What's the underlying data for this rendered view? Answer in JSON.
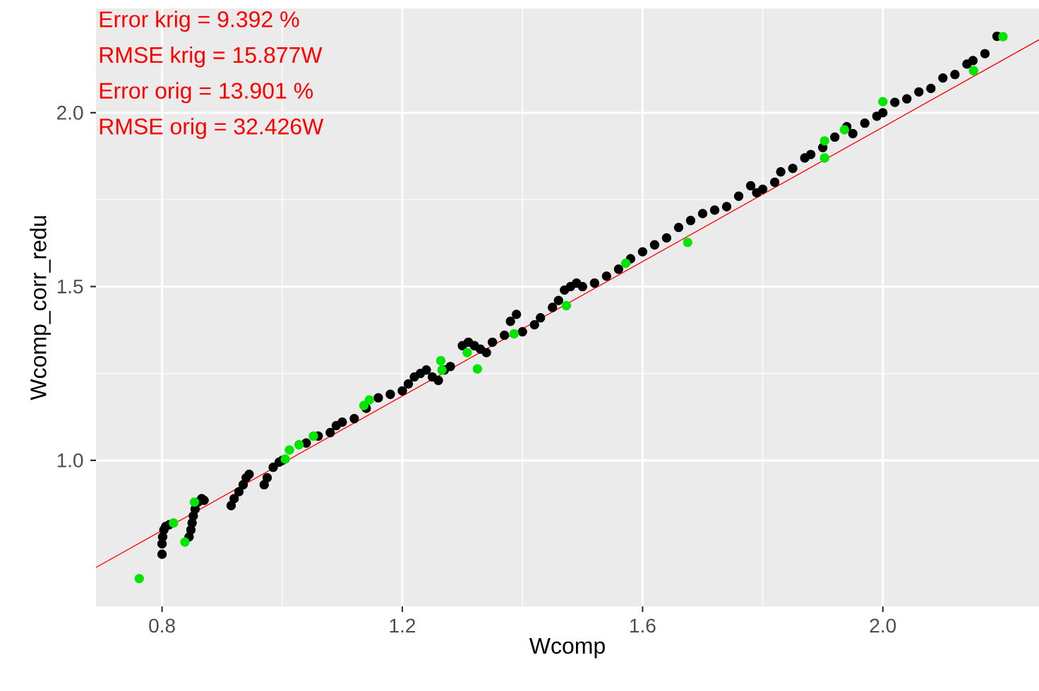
{
  "chart_data": {
    "type": "scatter",
    "xlabel": "Wcomp",
    "ylabel": "Wcomp_corr_redu",
    "annotations": [
      "Error krig = 9.392 %",
      "RMSE krig = 15.877W",
      "Error orig = 13.901 %",
      "RMSE orig = 32.426W"
    ],
    "xlim": [
      0.69,
      2.26
    ],
    "ylim": [
      0.58,
      2.3
    ],
    "xticks": [
      0.8,
      1.2,
      1.6,
      {
        "value": 2.0,
        "label": "2.0"
      }
    ],
    "yticks": [
      {
        "value": 1.0,
        "label": "1.0"
      },
      1.5,
      {
        "value": 2.0,
        "label": "2.0"
      }
    ],
    "grid": true,
    "series": [
      {
        "color": "#000000",
        "marker": "circle",
        "x": [
          0.8,
          0.8,
          0.801,
          0.803,
          0.806,
          0.812,
          0.845,
          0.848,
          0.85,
          0.852,
          0.855,
          0.86,
          0.866,
          0.87,
          0.915,
          0.92,
          0.928,
          0.935,
          0.94,
          0.945,
          0.97,
          0.975,
          0.985,
          0.995,
          1.0,
          1.04,
          1.06,
          1.08,
          1.09,
          1.1,
          1.12,
          1.14,
          1.16,
          1.18,
          1.2,
          1.21,
          1.22,
          1.23,
          1.24,
          1.25,
          1.26,
          1.27,
          1.28,
          1.3,
          1.31,
          1.32,
          1.33,
          1.34,
          1.35,
          1.37,
          1.38,
          1.39,
          1.4,
          1.42,
          1.43,
          1.45,
          1.46,
          1.47,
          1.48,
          1.49,
          1.5,
          1.52,
          1.54,
          1.56,
          1.58,
          1.6,
          1.62,
          1.64,
          1.66,
          1.68,
          1.7,
          1.72,
          1.74,
          1.76,
          1.78,
          1.79,
          1.8,
          1.82,
          1.83,
          1.85,
          1.87,
          1.88,
          1.9,
          1.92,
          1.94,
          1.95,
          1.97,
          1.99,
          2.0,
          2.02,
          2.04,
          2.06,
          2.08,
          2.1,
          2.12,
          2.14,
          2.15,
          2.17,
          2.19
        ],
        "values": [
          0.73,
          0.76,
          0.78,
          0.8,
          0.81,
          0.815,
          0.78,
          0.8,
          0.82,
          0.84,
          0.86,
          0.88,
          0.89,
          0.885,
          0.87,
          0.89,
          0.91,
          0.93,
          0.95,
          0.96,
          0.93,
          0.95,
          0.98,
          0.995,
          1.0,
          1.05,
          1.07,
          1.08,
          1.1,
          1.11,
          1.12,
          1.15,
          1.18,
          1.19,
          1.2,
          1.22,
          1.24,
          1.25,
          1.26,
          1.24,
          1.23,
          1.26,
          1.27,
          1.33,
          1.34,
          1.33,
          1.32,
          1.31,
          1.34,
          1.36,
          1.4,
          1.42,
          1.37,
          1.39,
          1.41,
          1.44,
          1.46,
          1.49,
          1.5,
          1.51,
          1.5,
          1.51,
          1.53,
          1.55,
          1.58,
          1.6,
          1.62,
          1.64,
          1.67,
          1.69,
          1.71,
          1.72,
          1.73,
          1.76,
          1.79,
          1.77,
          1.78,
          1.8,
          1.83,
          1.84,
          1.87,
          1.88,
          1.9,
          1.93,
          1.96,
          1.94,
          1.97,
          1.99,
          2.0,
          2.03,
          2.04,
          2.06,
          2.07,
          2.1,
          2.11,
          2.14,
          2.15,
          2.17,
          2.22
        ]
      },
      {
        "color": "#00e600",
        "marker": "circle",
        "x": [
          0.762,
          0.819,
          0.838,
          0.854,
          1.005,
          1.012,
          1.028,
          1.052,
          1.136,
          1.145,
          1.264,
          1.266,
          1.308,
          1.325,
          1.386,
          1.473,
          1.572,
          1.675,
          1.903,
          1.903,
          1.936,
          2.0,
          2.151,
          2.2
        ],
        "values": [
          0.66,
          0.82,
          0.765,
          0.88,
          1.004,
          1.03,
          1.045,
          1.07,
          1.158,
          1.174,
          1.287,
          1.26,
          1.31,
          1.263,
          1.364,
          1.445,
          1.567,
          1.627,
          1.919,
          1.87,
          1.951,
          2.032,
          2.121,
          2.219
        ]
      },
      {
        "type": "line",
        "marker": "none",
        "color": "#ff0000",
        "x": [
          0.69,
          2.26
        ],
        "values": [
          0.692,
          2.21
        ]
      }
    ]
  }
}
